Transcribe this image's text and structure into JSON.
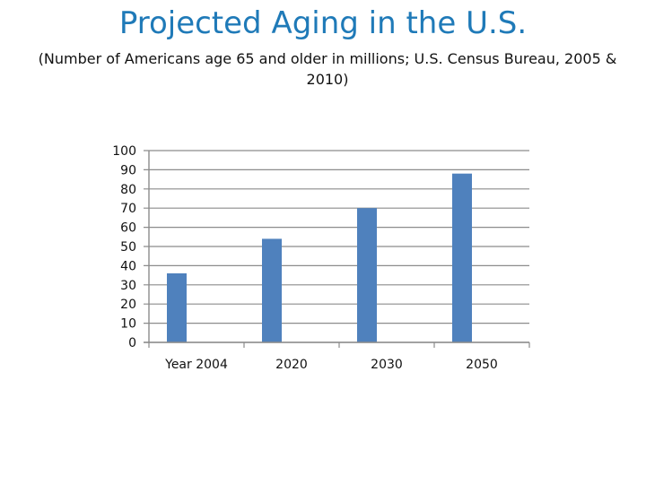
{
  "title": "Projected Aging in the U.S.",
  "subtitle": "(Number of Americans age 65 and older in millions; U.S. Census Bureau, 2005 & 2010)",
  "colors": {
    "title": "#1f7ab8",
    "bar": "#4f81bd",
    "grid": "#8c8c8c"
  },
  "chart_data": {
    "type": "bar",
    "title": "Projected Aging in the U.S.",
    "xlabel": "",
    "ylabel": "",
    "categories": [
      "Year  2004",
      "2020",
      "2030",
      "2050"
    ],
    "values": [
      36,
      54,
      70,
      88
    ],
    "ylim": [
      0,
      100
    ],
    "yticks": [
      0,
      10,
      20,
      30,
      40,
      50,
      60,
      70,
      80,
      90,
      100
    ],
    "grid": true,
    "legend": "none"
  }
}
